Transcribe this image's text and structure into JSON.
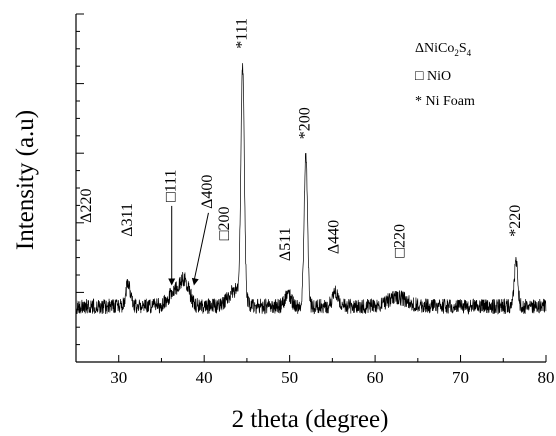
{
  "chart_data": {
    "type": "line",
    "title": "",
    "xlabel": "2 theta (degree)",
    "ylabel": "Intensity (a.u)",
    "xlim": [
      25,
      80
    ],
    "ylim": [
      0,
      10
    ],
    "x_ticks": [
      30,
      40,
      50,
      60,
      70,
      80
    ],
    "x_tick_labels": [
      "30",
      "40",
      "50",
      "60",
      "70",
      "80"
    ],
    "grid": false,
    "legend": {
      "placement": "top-right",
      "entries": [
        {
          "symbol": "Δ",
          "label": "NiCo",
          "sub1": "2",
          "label2": "S",
          "sub2": "4"
        },
        {
          "symbol": "□",
          "label": "NiO"
        },
        {
          "symbol": "*",
          "label": "Ni Foam"
        }
      ]
    },
    "series": [
      {
        "baseline": 1.6,
        "noise": 0.22,
        "peaks": [
          {
            "x": 31.1,
            "height": 0.7,
            "width": 0.25
          },
          {
            "x": 36.9,
            "height": 0.5,
            "width": 0.9
          },
          {
            "x": 37.8,
            "height": 0.45,
            "width": 0.5
          },
          {
            "x": 43.6,
            "height": 0.45,
            "width": 0.8
          },
          {
            "x": 44.5,
            "height": 6.6,
            "width": 0.2
          },
          {
            "x": 49.8,
            "height": 0.35,
            "width": 0.35
          },
          {
            "x": 51.9,
            "height": 4.4,
            "width": 0.2
          },
          {
            "x": 55.3,
            "height": 0.45,
            "width": 0.3
          },
          {
            "x": 62.6,
            "height": 0.25,
            "width": 1.2
          },
          {
            "x": 76.5,
            "height": 1.3,
            "width": 0.2
          }
        ]
      }
    ],
    "annotations": [
      {
        "text": "Δ220",
        "x": 26.3,
        "y": 4.0,
        "rotate": -90
      },
      {
        "text": "Δ311",
        "x": 31.1,
        "y": 3.6,
        "rotate": -90
      },
      {
        "text": "□111",
        "x": 36.2,
        "y": 4.6,
        "rotate": -90,
        "arrow_to": [
          36.2,
          2.2
        ]
      },
      {
        "text": "Δ400",
        "x": 40.5,
        "y": 4.4,
        "rotate": -90,
        "arrow_to": [
          38.8,
          2.2
        ]
      },
      {
        "text": "□200",
        "x": 42.5,
        "y": 3.5,
        "rotate": -90
      },
      {
        "text": "*111",
        "x": 44.5,
        "y": 9.0,
        "rotate": -90
      },
      {
        "text": "Δ511",
        "x": 49.6,
        "y": 2.9,
        "rotate": -90
      },
      {
        "text": "*200",
        "x": 51.9,
        "y": 6.4,
        "rotate": -90
      },
      {
        "text": "Δ440",
        "x": 55.3,
        "y": 3.1,
        "rotate": -90
      },
      {
        "text": "□220",
        "x": 63.0,
        "y": 3.0,
        "rotate": -90
      },
      {
        "text": "*220",
        "x": 76.5,
        "y": 3.6,
        "rotate": -90
      }
    ]
  }
}
